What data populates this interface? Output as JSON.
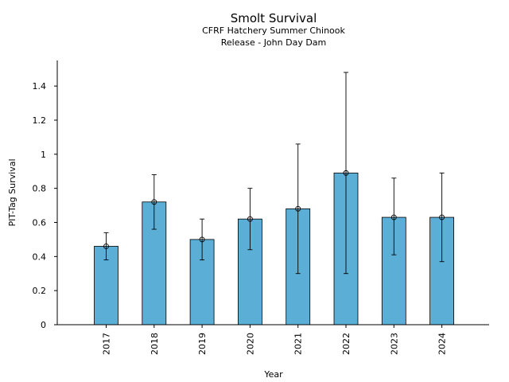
{
  "chart_data": {
    "type": "bar",
    "title": "Smolt Survival",
    "subtitle_lines": [
      "CFRF Hatchery Summer Chinook",
      "Release - John Day Dam"
    ],
    "xlabel": "Year",
    "ylabel": "PIT-Tag Survival",
    "categories": [
      "2017",
      "2018",
      "2019",
      "2020",
      "2021",
      "2022",
      "2023",
      "2024"
    ],
    "values": [
      0.46,
      0.72,
      0.5,
      0.62,
      0.68,
      0.89,
      0.63,
      0.63
    ],
    "error_low": [
      0.38,
      0.56,
      0.38,
      0.44,
      0.3,
      0.3,
      0.41,
      0.37
    ],
    "error_high": [
      0.54,
      0.88,
      0.62,
      0.8,
      1.06,
      1.48,
      0.86,
      0.89
    ],
    "ylim": [
      0,
      1.55
    ],
    "yticks": [
      0,
      0.2,
      0.4,
      0.6,
      0.8,
      1,
      1.2,
      1.4
    ],
    "ytick_labels": [
      "0",
      "0.2",
      "0.4",
      "0.6",
      "0.8",
      "1",
      "1.2",
      "1.4"
    ],
    "grid": false,
    "legend": "none",
    "bar_color": "#5bafd6",
    "edge_color": "#000000"
  }
}
